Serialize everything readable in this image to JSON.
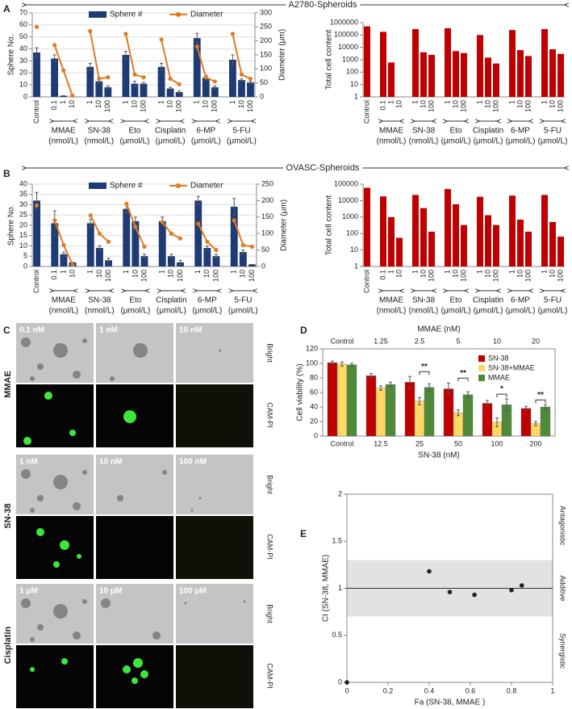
{
  "figure": {
    "panel_labels": [
      "A",
      "B",
      "C",
      "D",
      "E"
    ],
    "headers": [
      "A2780-Spheroids",
      "OVASC-Spheroids"
    ],
    "microscopy": {
      "channels": [
        "Bright",
        "CAM-PI"
      ],
      "rows": [
        {
          "drug": "MMAE",
          "doses": [
            "0.1 nM",
            "1 nM",
            "10 nM"
          ]
        },
        {
          "drug": "SN-38",
          "doses": [
            "1 nM",
            "10 nM",
            "100 nM"
          ]
        },
        {
          "drug": "Cisplatin",
          "doses": [
            "1 μM",
            "10 μM",
            "100 μM"
          ]
        }
      ]
    }
  },
  "chart_data": [
    {
      "type": "combo",
      "categories": [
        "Control",
        null,
        "0.1",
        "1",
        "10",
        null,
        "1",
        "10",
        "100",
        null,
        "1",
        "10",
        "100",
        null,
        "1",
        "10",
        "100",
        null,
        "1",
        "10",
        "100",
        null,
        "1",
        "10",
        "100"
      ],
      "series": [
        {
          "name": "Sphere #",
          "color": "#1f3b73",
          "values": [
            37,
            null,
            32,
            1,
            0,
            null,
            25,
            13,
            8,
            null,
            35,
            11,
            11,
            null,
            25,
            7,
            4,
            null,
            49,
            16,
            8,
            null,
            31,
            14,
            12
          ],
          "errors": [
            4,
            null,
            3,
            0,
            0,
            null,
            3,
            2,
            1,
            null,
            3,
            2,
            1,
            null,
            3,
            1,
            1,
            null,
            4,
            2,
            1,
            null,
            4,
            1,
            1
          ]
        },
        {
          "name": "Diameter",
          "color": "#e07b24",
          "axis": "y2",
          "values": [
            250,
            null,
            185,
            95,
            5,
            null,
            235,
            65,
            70,
            null,
            225,
            80,
            70,
            null,
            205,
            65,
            45,
            null,
            180,
            70,
            55,
            null,
            225,
            80,
            65
          ]
        }
      ],
      "ylabel": "Sphere No.",
      "y2label": "Diameter (μm)",
      "ylim": [
        0,
        70
      ],
      "yticks": [
        0,
        10,
        20,
        30,
        40,
        50,
        60,
        70
      ],
      "y2lim": [
        0,
        300
      ],
      "y2ticks": [
        0,
        50,
        100,
        150,
        200,
        250,
        300
      ],
      "grid": true,
      "legend": "top",
      "groups": [
        {
          "name": "MMAE",
          "unit": "(nmol/L)"
        },
        {
          "name": "SN-38",
          "unit": "(nmol/L)"
        },
        {
          "name": "Eto",
          "unit": "(μmol/L)"
        },
        {
          "name": "Cisplatin",
          "unit": "(μmol/L)"
        },
        {
          "name": "6-MP",
          "unit": "(μmol/L)"
        },
        {
          "name": "5-FU",
          "unit": "(μmol/L)"
        }
      ]
    },
    {
      "type": "bar",
      "log": true,
      "categories": [
        "Control",
        null,
        "0.1",
        "1",
        "10",
        null,
        "1",
        "10",
        "100",
        null,
        "1",
        "10",
        "100",
        null,
        "1",
        "10",
        "100",
        null,
        "1",
        "10",
        "100",
        null,
        "1",
        "10",
        "100"
      ],
      "values": [
        500000,
        null,
        180000,
        600,
        null,
        null,
        300000,
        4000,
        2500,
        null,
        350000,
        5000,
        3500,
        null,
        100000,
        1500,
        500,
        null,
        250000,
        6000,
        2000,
        null,
        300000,
        7000,
        3000
      ],
      "color": "#c00000",
      "ylabel": "Total cell content",
      "ylim": [
        1,
        1000000
      ],
      "yticks": [
        1,
        10,
        100,
        1000,
        10000,
        100000,
        1000000
      ],
      "groups": [
        {
          "name": "MMAE",
          "unit": "(nmol/L)"
        },
        {
          "name": "SN-38",
          "unit": "(nmol/L)"
        },
        {
          "name": "Eto",
          "unit": "(μmol/L)"
        },
        {
          "name": "Cisplatin",
          "unit": "(μmol/L)"
        },
        {
          "name": "6-MP",
          "unit": "(μmol/L)"
        },
        {
          "name": "5-FU",
          "unit": "(μmol/L)"
        }
      ]
    },
    {
      "type": "combo",
      "categories": [
        "Control",
        null,
        "0.1",
        "1",
        "10",
        null,
        "1",
        "10",
        "100",
        null,
        "1",
        "10",
        "100",
        null,
        "1",
        "10",
        "100",
        null,
        "1",
        "10",
        "100",
        null,
        "1",
        "10",
        "100"
      ],
      "series": [
        {
          "name": "Sphere #",
          "color": "#1f3b73",
          "values": [
            32,
            null,
            21,
            6,
            2,
            null,
            21,
            9,
            3,
            null,
            28,
            22,
            5,
            null,
            22,
            5,
            2,
            null,
            32,
            9,
            5,
            null,
            29,
            7,
            1
          ],
          "errors": [
            4,
            null,
            6,
            1,
            0,
            null,
            2,
            1,
            1,
            null,
            2,
            2,
            1,
            null,
            2,
            1,
            1,
            null,
            2,
            1,
            1,
            null,
            4,
            1,
            0
          ]
        },
        {
          "name": "Diameter",
          "color": "#e07b24",
          "axis": "y2",
          "values": [
            185,
            null,
            140,
            65,
            5,
            null,
            155,
            100,
            75,
            null,
            190,
            120,
            60,
            null,
            135,
            100,
            85,
            null,
            130,
            75,
            50,
            null,
            140,
            65,
            60
          ]
        }
      ],
      "ylabel": "Sphere No.",
      "y2label": "Diameter (μm)",
      "ylim": [
        0,
        40
      ],
      "yticks": [
        0,
        5,
        10,
        15,
        20,
        25,
        30,
        35,
        40
      ],
      "y2lim": [
        0,
        250
      ],
      "y2ticks": [
        0,
        50,
        100,
        150,
        200,
        250
      ],
      "grid": true,
      "legend": "top",
      "groups": [
        {
          "name": "MMAE",
          "unit": "(nmol/L)"
        },
        {
          "name": "SN-38",
          "unit": "(nmol/L)"
        },
        {
          "name": "Eto",
          "unit": "(μmol/L)"
        },
        {
          "name": "Cisplatin",
          "unit": "(μmol/L)"
        },
        {
          "name": "6-MP",
          "unit": "(μmol/L)"
        },
        {
          "name": "5-FU",
          "unit": "(μmol/L)"
        }
      ]
    },
    {
      "type": "bar",
      "log": true,
      "categories": [
        "Control",
        null,
        "0.1",
        "1",
        "10",
        null,
        "1",
        "10",
        "100",
        null,
        "1",
        "10",
        "100",
        null,
        "1",
        "10",
        "100",
        null,
        "1",
        "10",
        "100",
        null,
        "1",
        "10",
        "100"
      ],
      "values": [
        60000,
        null,
        18000,
        1000,
        55,
        null,
        22000,
        3500,
        130,
        null,
        50000,
        6000,
        330,
        null,
        17000,
        1300,
        330,
        null,
        20000,
        700,
        130,
        null,
        22000,
        500,
        65
      ],
      "color": "#c00000",
      "ylabel": "Total cell content",
      "ylim": [
        1,
        100000
      ],
      "yticks": [
        1,
        10,
        100,
        1000,
        10000,
        100000
      ],
      "groups": [
        {
          "name": "MMAE",
          "unit": "(nmol/L)"
        },
        {
          "name": "SN-38",
          "unit": "(nmol/L)"
        },
        {
          "name": "Eto",
          "unit": "(μmol/L)"
        },
        {
          "name": "Cisplatin",
          "unit": "(μmol/L)"
        },
        {
          "name": "6-MP",
          "unit": "(μmol/L)"
        },
        {
          "name": "5-FU",
          "unit": "(μmol/L)"
        }
      ]
    },
    {
      "type": "bar",
      "categories": [
        "Control",
        "12.5",
        "25",
        "50",
        "100",
        "200"
      ],
      "top_categories": [
        "Control",
        "1.25",
        "2.5",
        "5",
        "10",
        "20"
      ],
      "top_label": "MMAE (nM)",
      "xlabel": "SN-38 (nM)",
      "ylabel": "Cell viability (%)",
      "ylim": [
        0,
        120
      ],
      "yticks": [
        0,
        20,
        40,
        60,
        80,
        100,
        120
      ],
      "series": [
        {
          "name": "SN-38",
          "color": "#c00000",
          "values": [
            101,
            83,
            74,
            65,
            45,
            38
          ],
          "errors": [
            2,
            3,
            8,
            8,
            4,
            3
          ]
        },
        {
          "name": "SN-38+MMAE",
          "color": "#ffd966",
          "values": [
            99,
            66,
            48,
            32,
            19,
            17
          ],
          "errors": [
            3,
            3,
            5,
            4,
            6,
            3
          ]
        },
        {
          "name": "MMAE",
          "color": "#4e8a3a",
          "values": [
            98,
            71,
            67,
            57,
            43,
            40
          ],
          "errors": [
            2,
            3,
            5,
            4,
            8,
            3
          ]
        }
      ],
      "significance": [
        null,
        null,
        "**",
        "**",
        "*",
        "**"
      ],
      "legend": "top-right"
    },
    {
      "type": "scatter",
      "x": [
        0,
        0.4,
        0.5,
        0.62,
        0.8,
        0.85
      ],
      "y": [
        0,
        1.18,
        0.96,
        0.93,
        0.98,
        1.03
      ],
      "xlim": [
        0,
        1
      ],
      "ylim": [
        0,
        2
      ],
      "xticks": [
        0,
        0.2,
        0.4,
        0.6,
        0.8,
        1
      ],
      "yticks": [
        0,
        0.5,
        1,
        1.5,
        2
      ],
      "reference_line": 1,
      "shaded_range": [
        0.7,
        1.3
      ],
      "region_labels": [
        "Antagonistic",
        "Additive",
        "Synergistic"
      ],
      "xlabel": "Fa (SN-38, MMAE )",
      "ylabel": "CI (SN-38, MMAE)"
    }
  ]
}
